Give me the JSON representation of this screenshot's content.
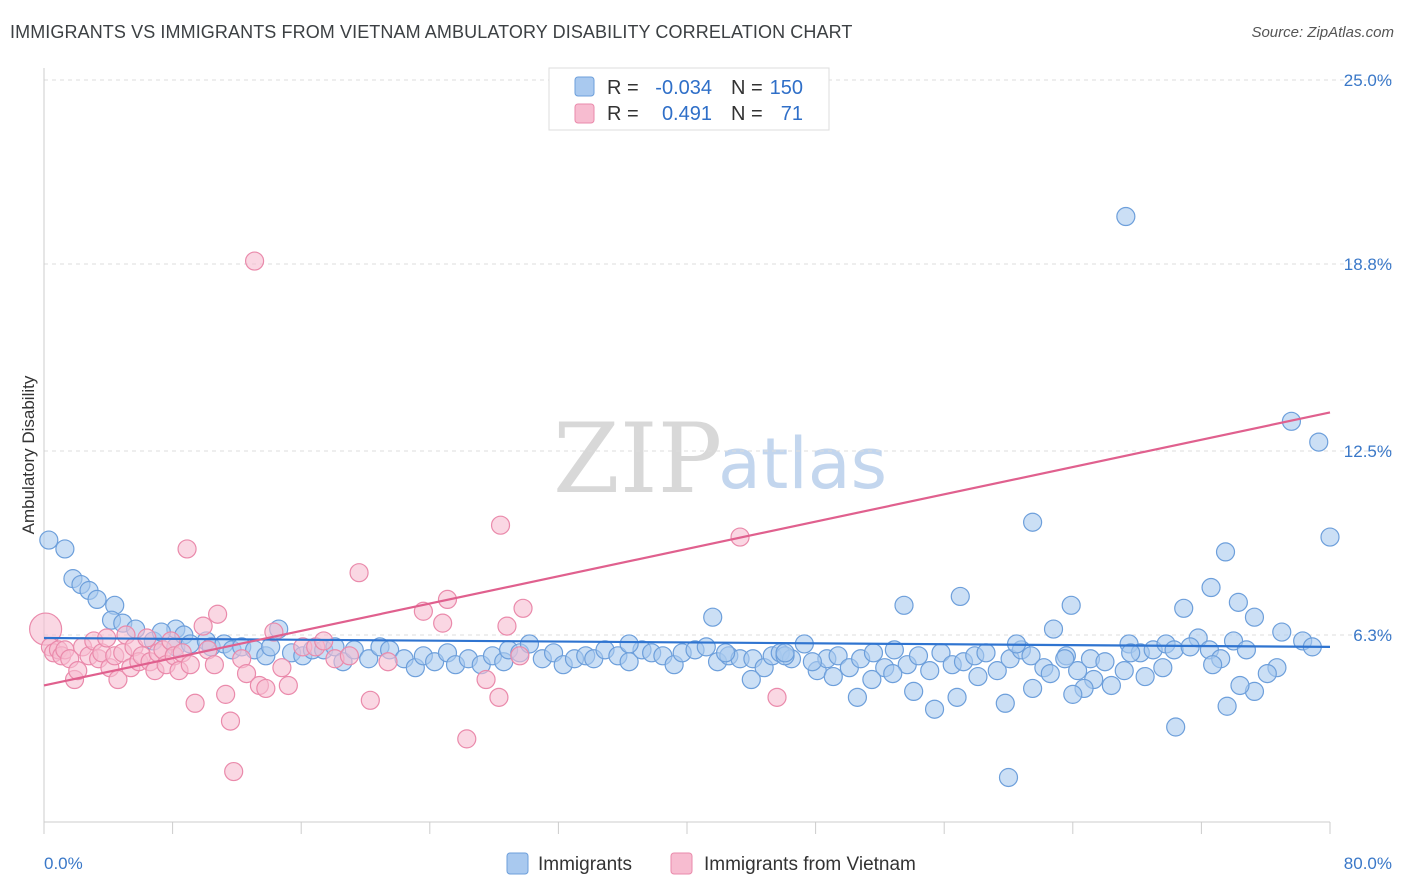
{
  "title": "IMMIGRANTS VS IMMIGRANTS FROM VIETNAM AMBULATORY DISABILITY CORRELATION CHART",
  "source": "Source: ZipAtlas.com",
  "watermark": {
    "part1": "ZIP",
    "part2": "atlas"
  },
  "colors": {
    "blue_fill": "#a9c9ef",
    "blue_stroke": "#6d9fdb",
    "blue_line": "#2f74d0",
    "pink_fill": "#f7bcd0",
    "pink_stroke": "#ea8aab",
    "pink_line": "#e0608e",
    "grid": "#dddddd",
    "axis_text": "#3a78c8"
  },
  "chart_data": {
    "type": "scatter",
    "ylabel": "Ambulatory Disability",
    "xlim": [
      0,
      80
    ],
    "ylim": [
      0,
      25
    ],
    "x_tick_labels": [
      "0.0%",
      "80.0%"
    ],
    "y_ticks": [
      6.3,
      12.5,
      18.8,
      25.0
    ],
    "y_tick_labels": [
      "6.3%",
      "12.5%",
      "18.8%",
      "25.0%"
    ],
    "legend": {
      "rows": [
        {
          "r_label": "R =",
          "r_value": "-0.034",
          "n_label": "N =",
          "n_value": "150"
        },
        {
          "r_label": "R =",
          "r_value": "0.491",
          "n_label": "N =",
          "n_value": "71"
        }
      ]
    },
    "series": [
      {
        "name": "Immigrants",
        "trend": {
          "x": [
            0,
            80
          ],
          "y": [
            6.2,
            5.9
          ]
        },
        "points": [
          [
            0.3,
            9.5
          ],
          [
            1.3,
            9.2
          ],
          [
            1.8,
            8.2
          ],
          [
            2.3,
            8.0
          ],
          [
            2.8,
            7.8
          ],
          [
            3.3,
            7.5
          ],
          [
            4.4,
            7.3
          ],
          [
            4.2,
            6.8
          ],
          [
            4.9,
            6.7
          ],
          [
            5.7,
            6.5
          ],
          [
            6.8,
            6.1
          ],
          [
            8.2,
            6.5
          ],
          [
            7.3,
            6.4
          ],
          [
            8.2,
            5.9
          ],
          [
            8.7,
            6.3
          ],
          [
            9.1,
            6.0
          ],
          [
            10.1,
            6.1
          ],
          [
            10.4,
            5.9
          ],
          [
            11.2,
            6.0
          ],
          [
            11.7,
            5.8
          ],
          [
            12.3,
            5.9
          ],
          [
            13.1,
            5.8
          ],
          [
            13.8,
            5.6
          ],
          [
            14.1,
            5.9
          ],
          [
            14.6,
            6.5
          ],
          [
            15.4,
            5.7
          ],
          [
            16.1,
            5.6
          ],
          [
            16.7,
            5.8
          ],
          [
            17.4,
            5.8
          ],
          [
            18.1,
            5.9
          ],
          [
            18.6,
            5.4
          ],
          [
            19.3,
            5.8
          ],
          [
            20.2,
            5.5
          ],
          [
            20.9,
            5.9
          ],
          [
            21.5,
            5.8
          ],
          [
            22.4,
            5.5
          ],
          [
            23.1,
            5.2
          ],
          [
            23.6,
            5.6
          ],
          [
            24.3,
            5.4
          ],
          [
            25.1,
            5.7
          ],
          [
            25.6,
            5.3
          ],
          [
            26.4,
            5.5
          ],
          [
            27.2,
            5.3
          ],
          [
            27.9,
            5.6
          ],
          [
            28.6,
            5.4
          ],
          [
            28.9,
            5.8
          ],
          [
            29.6,
            5.7
          ],
          [
            30.2,
            6.0
          ],
          [
            31.0,
            5.5
          ],
          [
            31.7,
            5.7
          ],
          [
            32.3,
            5.3
          ],
          [
            33.0,
            5.5
          ],
          [
            33.7,
            5.6
          ],
          [
            34.2,
            5.5
          ],
          [
            34.9,
            5.8
          ],
          [
            35.7,
            5.6
          ],
          [
            36.4,
            5.4
          ],
          [
            37.2,
            5.8
          ],
          [
            37.8,
            5.7
          ],
          [
            38.5,
            5.6
          ],
          [
            39.2,
            5.3
          ],
          [
            39.7,
            5.7
          ],
          [
            40.5,
            5.8
          ],
          [
            41.2,
            5.9
          ],
          [
            41.9,
            5.4
          ],
          [
            42.6,
            5.6
          ],
          [
            43.3,
            5.5
          ],
          [
            44.1,
            5.5
          ],
          [
            44.8,
            5.2
          ],
          [
            45.3,
            5.6
          ],
          [
            45.8,
            5.7
          ],
          [
            46.5,
            5.5
          ],
          [
            47.3,
            6.0
          ],
          [
            48.1,
            5.1
          ],
          [
            48.7,
            5.5
          ],
          [
            49.4,
            5.6
          ],
          [
            50.1,
            5.2
          ],
          [
            50.8,
            5.5
          ],
          [
            51.6,
            5.7
          ],
          [
            52.3,
            5.2
          ],
          [
            52.9,
            5.8
          ],
          [
            53.7,
            5.3
          ],
          [
            54.4,
            5.6
          ],
          [
            55.1,
            5.1
          ],
          [
            55.8,
            5.7
          ],
          [
            56.5,
            5.3
          ],
          [
            57.2,
            5.4
          ],
          [
            57.9,
            5.6
          ],
          [
            58.6,
            5.7
          ],
          [
            59.3,
            5.1
          ],
          [
            60.1,
            5.5
          ],
          [
            60.8,
            5.8
          ],
          [
            61.4,
            5.6
          ],
          [
            62.2,
            5.2
          ],
          [
            62.8,
            6.5
          ],
          [
            63.6,
            5.6
          ],
          [
            64.3,
            5.1
          ],
          [
            65.1,
            5.5
          ],
          [
            66.0,
            5.4
          ],
          [
            67.5,
            6.0
          ],
          [
            68.2,
            5.7
          ],
          [
            69.0,
            5.8
          ],
          [
            69.8,
            6.0
          ],
          [
            70.3,
            5.8
          ],
          [
            70.9,
            7.2
          ],
          [
            71.8,
            6.2
          ],
          [
            72.5,
            5.8
          ],
          [
            73.2,
            5.5
          ],
          [
            74.0,
            6.1
          ],
          [
            74.8,
            5.8
          ],
          [
            75.3,
            6.9
          ],
          [
            77.0,
            6.4
          ],
          [
            77.6,
            13.5
          ],
          [
            79.3,
            12.8
          ],
          [
            80.0,
            9.6
          ],
          [
            78.3,
            6.1
          ],
          [
            78.9,
            5.9
          ],
          [
            76.7,
            5.2
          ],
          [
            76.1,
            5.0
          ],
          [
            75.3,
            4.4
          ],
          [
            74.4,
            4.6
          ],
          [
            73.6,
            3.9
          ],
          [
            72.7,
            5.3
          ],
          [
            71.3,
            5.9
          ],
          [
            70.4,
            3.2
          ],
          [
            69.6,
            5.2
          ],
          [
            68.5,
            4.9
          ],
          [
            67.2,
            5.1
          ],
          [
            66.4,
            4.6
          ],
          [
            65.3,
            4.8
          ],
          [
            64.7,
            4.5
          ],
          [
            64.0,
            4.3
          ],
          [
            63.5,
            5.5
          ],
          [
            62.6,
            5.0
          ],
          [
            61.5,
            4.5
          ],
          [
            60.0,
            1.5
          ],
          [
            59.8,
            4.0
          ],
          [
            58.1,
            4.9
          ],
          [
            56.8,
            4.2
          ],
          [
            55.4,
            3.8
          ],
          [
            54.1,
            4.4
          ],
          [
            52.8,
            5.0
          ],
          [
            51.5,
            4.8
          ],
          [
            50.6,
            4.2
          ],
          [
            49.1,
            4.9
          ],
          [
            47.8,
            5.4
          ],
          [
            46.1,
            5.6
          ],
          [
            44.0,
            4.8
          ],
          [
            61.5,
            10.1
          ],
          [
            73.5,
            9.1
          ],
          [
            74.3,
            7.4
          ],
          [
            63.9,
            7.3
          ],
          [
            57.0,
            7.6
          ],
          [
            72.6,
            7.9
          ],
          [
            67.6,
            5.7
          ],
          [
            60.5,
            6.0
          ],
          [
            53.5,
            7.3
          ],
          [
            42.4,
            5.7
          ],
          [
            36.4,
            6.0
          ],
          [
            41.6,
            6.9
          ],
          [
            46.1,
            5.7
          ],
          [
            67.3,
            20.4
          ]
        ]
      },
      {
        "name": "Immigrants from Vietnam",
        "trend": {
          "x": [
            0,
            80
          ],
          "y": [
            4.6,
            13.8
          ]
        },
        "points": [
          [
            0.1,
            6.5
          ],
          [
            0.4,
            5.9
          ],
          [
            0.6,
            5.7
          ],
          [
            0.9,
            5.8
          ],
          [
            1.1,
            5.6
          ],
          [
            1.3,
            5.8
          ],
          [
            1.6,
            5.5
          ],
          [
            1.9,
            4.8
          ],
          [
            2.1,
            5.1
          ],
          [
            2.4,
            5.9
          ],
          [
            2.8,
            5.6
          ],
          [
            3.1,
            6.1
          ],
          [
            3.4,
            5.5
          ],
          [
            3.6,
            5.7
          ],
          [
            3.9,
            6.2
          ],
          [
            4.1,
            5.2
          ],
          [
            4.4,
            5.6
          ],
          [
            4.6,
            4.8
          ],
          [
            4.9,
            5.7
          ],
          [
            5.1,
            6.3
          ],
          [
            5.4,
            5.2
          ],
          [
            5.6,
            5.9
          ],
          [
            5.9,
            5.4
          ],
          [
            6.1,
            5.6
          ],
          [
            6.4,
            6.2
          ],
          [
            6.6,
            5.4
          ],
          [
            6.9,
            5.1
          ],
          [
            7.1,
            5.7
          ],
          [
            7.4,
            5.8
          ],
          [
            7.6,
            5.3
          ],
          [
            7.9,
            6.1
          ],
          [
            8.1,
            5.6
          ],
          [
            8.4,
            5.1
          ],
          [
            8.6,
            5.7
          ],
          [
            8.9,
            9.2
          ],
          [
            9.1,
            5.3
          ],
          [
            9.4,
            4.0
          ],
          [
            9.9,
            6.6
          ],
          [
            10.2,
            5.8
          ],
          [
            10.6,
            5.3
          ],
          [
            10.8,
            7.0
          ],
          [
            11.3,
            4.3
          ],
          [
            11.6,
            3.4
          ],
          [
            11.8,
            1.7
          ],
          [
            12.3,
            5.5
          ],
          [
            12.6,
            5.0
          ],
          [
            13.1,
            18.9
          ],
          [
            13.4,
            4.6
          ],
          [
            13.8,
            4.5
          ],
          [
            14.3,
            6.4
          ],
          [
            14.8,
            5.2
          ],
          [
            15.2,
            4.6
          ],
          [
            16.1,
            5.9
          ],
          [
            16.9,
            5.9
          ],
          [
            17.4,
            6.1
          ],
          [
            18.1,
            5.5
          ],
          [
            19.0,
            5.6
          ],
          [
            19.6,
            8.4
          ],
          [
            20.3,
            4.1
          ],
          [
            21.4,
            5.4
          ],
          [
            23.6,
            7.1
          ],
          [
            24.8,
            6.7
          ],
          [
            25.1,
            7.5
          ],
          [
            26.3,
            2.8
          ],
          [
            27.5,
            4.8
          ],
          [
            28.8,
            6.6
          ],
          [
            28.4,
            10.0
          ],
          [
            29.8,
            7.2
          ],
          [
            29.6,
            5.6
          ],
          [
            43.3,
            9.6
          ],
          [
            45.6,
            4.2
          ],
          [
            28.3,
            4.2
          ]
        ]
      }
    ]
  },
  "bottom_legend": [
    {
      "label": "Immigrants"
    },
    {
      "label": "Immigrants from Vietnam"
    }
  ]
}
